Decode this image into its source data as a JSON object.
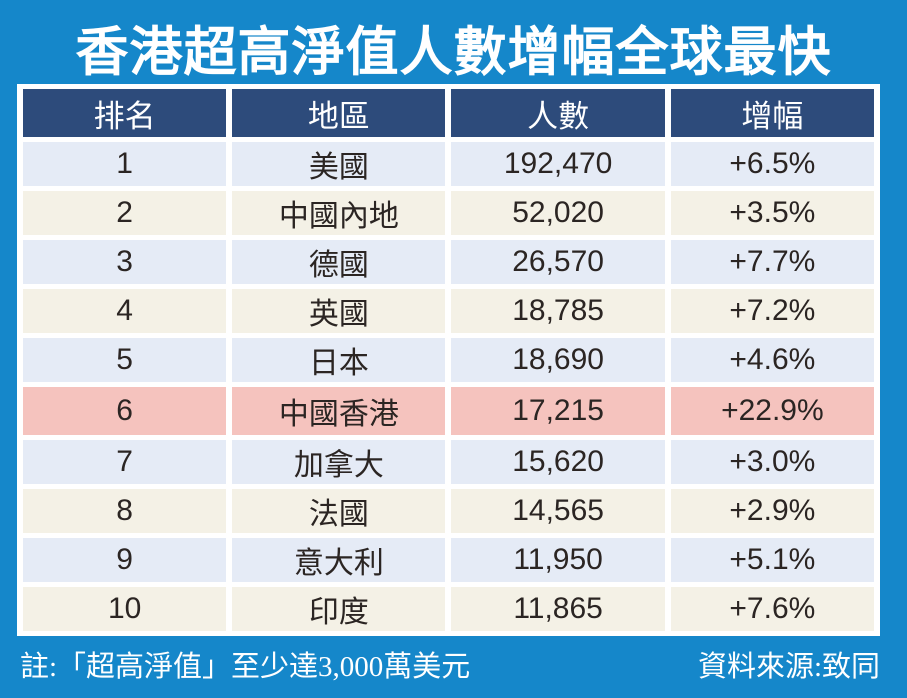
{
  "chart_data": {
    "type": "table",
    "title": "香港超高淨值人數增幅全球最快",
    "columns": [
      "排名",
      "地區",
      "人數",
      "增幅"
    ],
    "rows": [
      {
        "rank": "1",
        "region": "美國",
        "count": "192,470",
        "growth": "+6.5%",
        "variant": "blue"
      },
      {
        "rank": "2",
        "region": "中國內地",
        "count": "52,020",
        "growth": "+3.5%",
        "variant": "cream"
      },
      {
        "rank": "3",
        "region": "德國",
        "count": "26,570",
        "growth": "+7.7%",
        "variant": "blue"
      },
      {
        "rank": "4",
        "region": "英國",
        "count": "18,785",
        "growth": "+7.2%",
        "variant": "cream"
      },
      {
        "rank": "5",
        "region": "日本",
        "count": "18,690",
        "growth": "+4.6%",
        "variant": "blue"
      },
      {
        "rank": "6",
        "region": "中國香港",
        "count": "17,215",
        "growth": "+22.9%",
        "variant": "highlight"
      },
      {
        "rank": "7",
        "region": "加拿大",
        "count": "15,620",
        "growth": "+3.0%",
        "variant": "blue"
      },
      {
        "rank": "8",
        "region": "法國",
        "count": "14,565",
        "growth": "+2.9%",
        "variant": "cream"
      },
      {
        "rank": "9",
        "region": "意大利",
        "count": "11,950",
        "growth": "+5.1%",
        "variant": "blue"
      },
      {
        "rank": "10",
        "region": "印度",
        "count": "11,865",
        "growth": "+7.6%",
        "variant": "cream"
      }
    ],
    "highlighted_row_rank": "6",
    "note": "註:「超高淨值」至少達3,000萬美元",
    "source": "資料來源:致同",
    "legend_position": "none",
    "grid": "off"
  },
  "colors": {
    "background": "#1587ca",
    "header_bg": "#2d4b7b",
    "row_blue": "#e5ebf6",
    "row_cream": "#f4f1e6",
    "row_highlight": "#f5c3be",
    "text": "#2b2523",
    "white": "#ffffff"
  }
}
